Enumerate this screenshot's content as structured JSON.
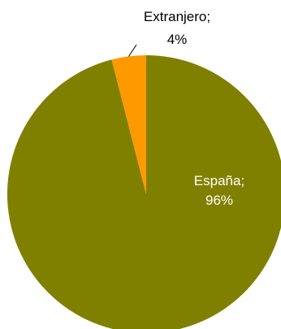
{
  "chart_data": {
    "type": "pie",
    "categories": [
      "España",
      "Extranjero"
    ],
    "values": [
      96,
      4
    ],
    "unit": "%",
    "colors": [
      "#808000",
      "#ff9900"
    ],
    "start_angle_deg": 0,
    "direction": "clockwise",
    "data_labels": [
      {
        "name": "España;",
        "value": "96%",
        "color": "#ffffff",
        "placement": "inside"
      },
      {
        "name": "Extranjero;",
        "value": "4%",
        "color": "#000000",
        "placement": "outside-with-leader"
      }
    ],
    "legend": false
  }
}
